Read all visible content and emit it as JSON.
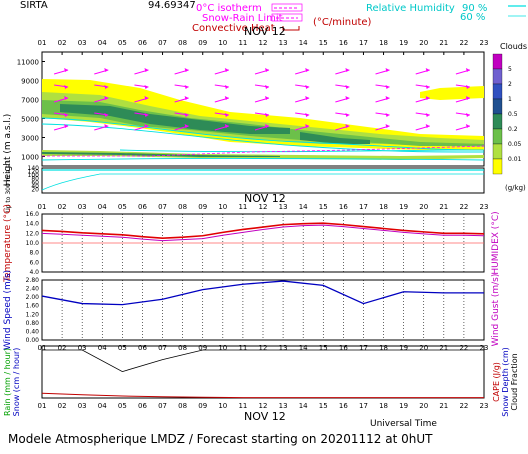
{
  "header": {
    "station": "SIRTA",
    "station_number": "94.69347",
    "zero_isotherm_label": "0°C isotherm",
    "snow_rain_label": "Snow-Rain Limit",
    "convective_label": "Convective Heat",
    "convective_unit": "(°C/minute)",
    "rh_label": "Relative Humidity",
    "rh_90": "90 %",
    "rh_60": "60 %"
  },
  "hours": [
    "01",
    "02",
    "03",
    "04",
    "05",
    "06",
    "07",
    "08",
    "09",
    "10",
    "11",
    "12",
    "13",
    "14",
    "15",
    "16",
    "17",
    "18",
    "19",
    "20",
    "21",
    "22",
    "23"
  ],
  "date_label": "NOV 12",
  "clouds_legend": {
    "title": "Clouds",
    "levels": [
      "5",
      "2",
      "1",
      "0.5",
      "0.2",
      "0.05",
      "0.01"
    ],
    "unit": "(g/kg)",
    "colors": [
      "#c000c0",
      "#7060d0",
      "#3050c0",
      "#205090",
      "#2e8b57",
      "#6cc04a",
      "#b0e040",
      "#ffff00"
    ]
  },
  "colors": {
    "cloud_light": "#ffff00",
    "cloud_mid": "#b0e040",
    "cloud_green": "#6cc04a",
    "cloud_dark": "#2e8b57",
    "wind_arrow": "#ff00ff",
    "rh": "#00e0e0",
    "temperature": "#e00000",
    "humidex": "#c000c0",
    "wind_speed": "#0000c0",
    "precip_rain": "#00c000",
    "cape": "#c00000",
    "snow_depth": "#0000c0",
    "cloud_fraction": "#000000"
  },
  "chart_data": [
    {
      "type": "area",
      "name": "cloud_cross_section",
      "ylabel": "Height (m a.s.l.)",
      "y_ticks": [
        1000,
        3000,
        5000,
        7000,
        9000,
        11000
      ],
      "ylim": [
        0,
        12000
      ],
      "lower_label": "Up to 300 m a.s.l.",
      "lower_ticks": [
        20,
        40,
        60,
        80,
        100,
        120,
        140
      ]
    },
    {
      "type": "line",
      "name": "temperature",
      "ylabel": "Temperature (°C)",
      "y2label": "HUMIDEX (°C)",
      "y_ticks": [
        "4.0",
        "6.0",
        "8.0",
        "10.0",
        "12.0",
        "14.0",
        "16.0"
      ],
      "ylim": [
        4,
        16
      ],
      "x": [
        "01",
        "02",
        "03",
        "04",
        "05",
        "06",
        "07",
        "08",
        "09",
        "10",
        "11",
        "12",
        "13",
        "14",
        "15",
        "16",
        "17",
        "18",
        "19",
        "20",
        "21",
        "22",
        "23"
      ],
      "series": [
        {
          "name": "Temperature",
          "values": [
            12.6,
            12.4,
            12.1,
            11.9,
            11.7,
            11.3,
            11.0,
            11.2,
            11.5,
            12.2,
            12.8,
            13.3,
            13.8,
            14.0,
            14.1,
            13.8,
            13.4,
            13.0,
            12.6,
            12.3,
            12.0,
            12.0,
            11.9
          ]
        },
        {
          "name": "HUMIDEX",
          "values": [
            12.0,
            11.8,
            11.6,
            11.4,
            11.2,
            10.8,
            10.5,
            10.7,
            10.9,
            11.6,
            12.2,
            12.8,
            13.3,
            13.6,
            13.7,
            13.4,
            13.0,
            12.6,
            12.2,
            11.9,
            11.6,
            11.6,
            11.5
          ]
        }
      ],
      "reference_line": 10.0
    },
    {
      "type": "line",
      "name": "wind_speed",
      "ylabel": "Wind Speed (m/s)",
      "y2label": "Wind Gust (m/s)",
      "y_ticks": [
        "0.00",
        "0.40",
        "0.80",
        "1.20",
        "1.60",
        "2.00",
        "2.40",
        "2.80"
      ],
      "ylim": [
        0,
        2.8
      ],
      "x": [
        "01",
        "03",
        "05",
        "07",
        "09",
        "11",
        "13",
        "15",
        "17",
        "19",
        "21",
        "23"
      ],
      "series": [
        {
          "name": "Wind Speed",
          "values": [
            2.05,
            1.7,
            1.65,
            1.9,
            2.35,
            2.6,
            2.75,
            2.55,
            1.7,
            2.25,
            2.2,
            2.2
          ]
        }
      ]
    },
    {
      "type": "line",
      "name": "precipitation",
      "ylabel": "Rain (mm / hour)",
      "ylabel2": "Snow (cm / hour)",
      "y2label": "CAPE (J/g)",
      "y2label2": "Snow Depth (cm)",
      "y2label3": "Cloud Fraction",
      "x": [
        "01",
        "03",
        "05",
        "07",
        "09",
        "11",
        "13",
        "15",
        "17",
        "19",
        "21",
        "23"
      ],
      "series": [
        {
          "name": "Cloud Fraction",
          "values": [
            1.0,
            1.0,
            0.55,
            0.8,
            1.0,
            1.0,
            1.0,
            1.0,
            1.0,
            1.0,
            1.0,
            1.0
          ]
        },
        {
          "name": "CAPE",
          "values": [
            0.12,
            0.08,
            0.05,
            0.03,
            0.02,
            0.01,
            0.01,
            0.01,
            0.01,
            0.01,
            0.01,
            0.01
          ]
        }
      ],
      "xlabel": "Universal Time"
    }
  ],
  "footer": "Modele Atmospherique LMDZ / Forecast starting on 20201112 at 0hUT"
}
